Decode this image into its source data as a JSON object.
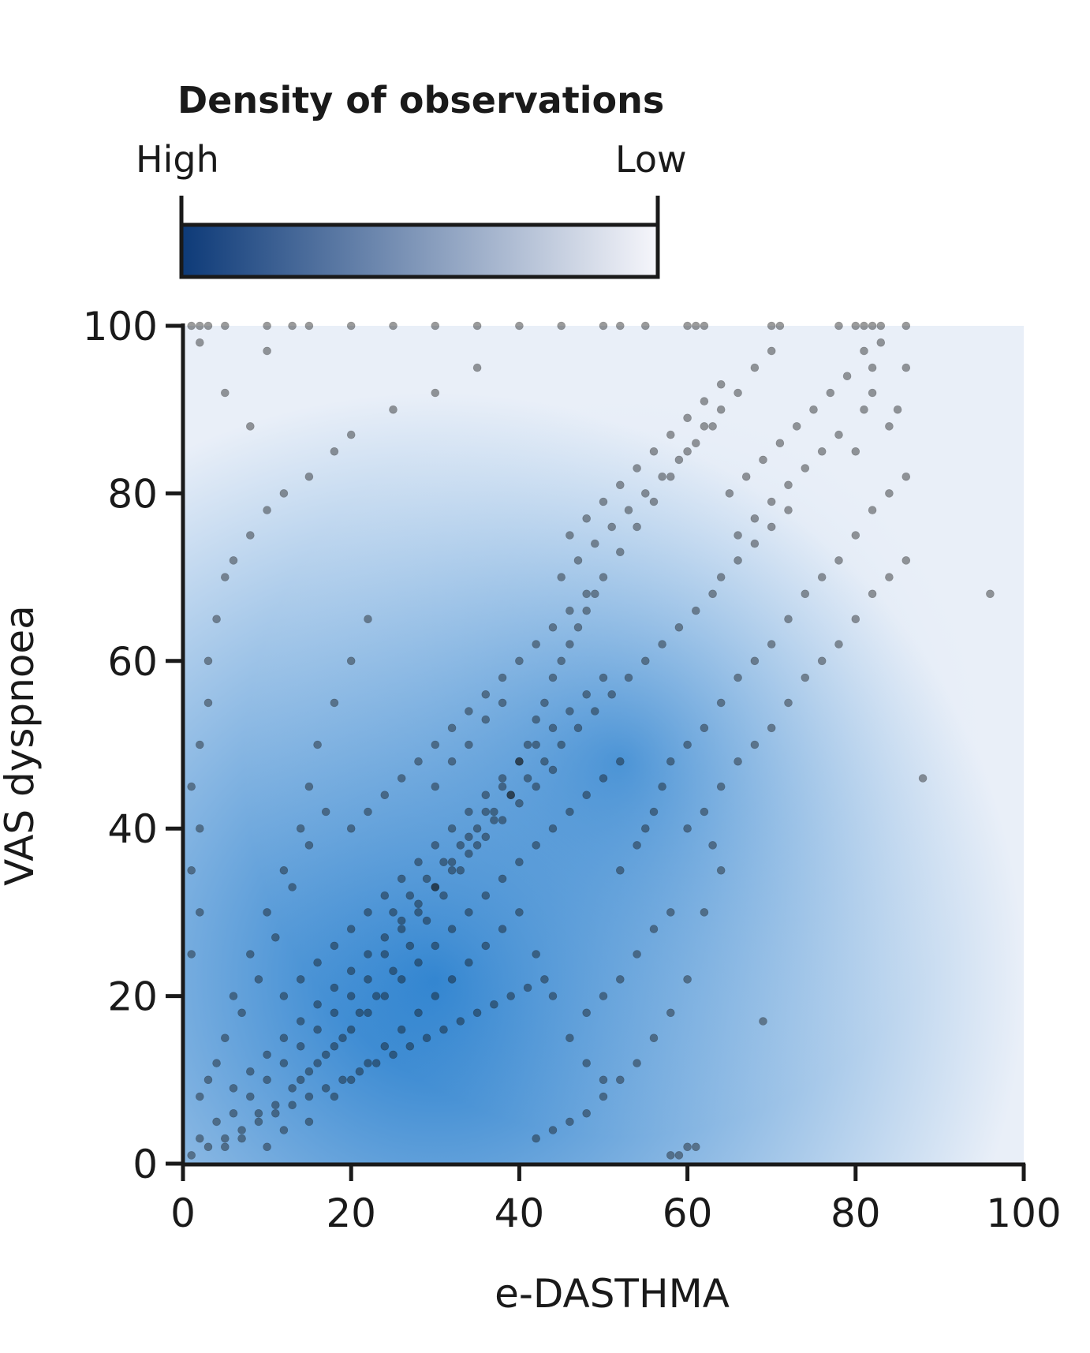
{
  "chart_data": {
    "type": "scatter",
    "xlabel": "e-DASTHMA",
    "ylabel": "VAS dyspnoea",
    "xlim": [
      0,
      100
    ],
    "ylim": [
      0,
      100
    ],
    "x_ticks": [
      "0",
      "20",
      "40",
      "60",
      "80",
      "100"
    ],
    "y_ticks": [
      "0",
      "20",
      "40",
      "60",
      "80",
      "100"
    ],
    "grid": false,
    "legend": {
      "title": "Density of observations",
      "high_label": "High",
      "low_label": "Low",
      "placement": "top",
      "color_high": "#0d3a78",
      "color_low": "#f6f6fb"
    },
    "density_background": {
      "high_color": "#1f7acc",
      "low_color": "#e9eff8"
    },
    "point_color": "#111111",
    "points": [
      [
        1,
        1
      ],
      [
        2,
        3
      ],
      [
        3,
        2
      ],
      [
        4,
        5
      ],
      [
        5,
        3
      ],
      [
        6,
        6
      ],
      [
        7,
        4
      ],
      [
        8,
        8
      ],
      [
        9,
        6
      ],
      [
        10,
        10
      ],
      [
        11,
        7
      ],
      [
        12,
        12
      ],
      [
        13,
        9
      ],
      [
        14,
        14
      ],
      [
        15,
        11
      ],
      [
        16,
        16
      ],
      [
        17,
        13
      ],
      [
        18,
        18
      ],
      [
        19,
        15
      ],
      [
        20,
        20
      ],
      [
        21,
        18
      ],
      [
        22,
        22
      ],
      [
        23,
        20
      ],
      [
        24,
        25
      ],
      [
        25,
        23
      ],
      [
        26,
        28
      ],
      [
        27,
        26
      ],
      [
        28,
        30
      ],
      [
        29,
        29
      ],
      [
        30,
        33
      ],
      [
        31,
        32
      ],
      [
        32,
        36
      ],
      [
        33,
        35
      ],
      [
        34,
        39
      ],
      [
        35,
        38
      ],
      [
        36,
        42
      ],
      [
        37,
        41
      ],
      [
        38,
        45
      ],
      [
        39,
        44
      ],
      [
        40,
        48
      ],
      [
        41,
        50
      ],
      [
        42,
        53
      ],
      [
        43,
        55
      ],
      [
        44,
        58
      ],
      [
        45,
        60
      ],
      [
        46,
        62
      ],
      [
        47,
        64
      ],
      [
        48,
        66
      ],
      [
        49,
        68
      ],
      [
        50,
        70
      ],
      [
        52,
        73
      ],
      [
        54,
        76
      ],
      [
        56,
        79
      ],
      [
        58,
        82
      ],
      [
        60,
        85
      ],
      [
        62,
        88
      ],
      [
        64,
        90
      ],
      [
        66,
        92
      ],
      [
        68,
        95
      ],
      [
        70,
        97
      ],
      [
        3,
        10
      ],
      [
        5,
        15
      ],
      [
        6,
        20
      ],
      [
        8,
        25
      ],
      [
        10,
        30
      ],
      [
        12,
        35
      ],
      [
        14,
        40
      ],
      [
        15,
        45
      ],
      [
        16,
        50
      ],
      [
        18,
        55
      ],
      [
        20,
        60
      ],
      [
        22,
        65
      ],
      [
        2,
        8
      ],
      [
        4,
        12
      ],
      [
        7,
        18
      ],
      [
        9,
        22
      ],
      [
        11,
        27
      ],
      [
        13,
        33
      ],
      [
        15,
        38
      ],
      [
        17,
        42
      ],
      [
        10,
        2
      ],
      [
        12,
        4
      ],
      [
        15,
        5
      ],
      [
        18,
        8
      ],
      [
        20,
        10
      ],
      [
        22,
        12
      ],
      [
        24,
        14
      ],
      [
        26,
        16
      ],
      [
        28,
        18
      ],
      [
        30,
        20
      ],
      [
        32,
        22
      ],
      [
        34,
        24
      ],
      [
        36,
        26
      ],
      [
        38,
        28
      ],
      [
        40,
        30
      ],
      [
        42,
        25
      ],
      [
        44,
        20
      ],
      [
        46,
        15
      ],
      [
        48,
        12
      ],
      [
        50,
        10
      ],
      [
        52,
        35
      ],
      [
        54,
        38
      ],
      [
        55,
        40
      ],
      [
        56,
        42
      ],
      [
        57,
        45
      ],
      [
        58,
        48
      ],
      [
        60,
        50
      ],
      [
        62,
        52
      ],
      [
        64,
        55
      ],
      [
        66,
        58
      ],
      [
        68,
        60
      ],
      [
        70,
        62
      ],
      [
        72,
        65
      ],
      [
        74,
        68
      ],
      [
        76,
        70
      ],
      [
        78,
        72
      ],
      [
        80,
        75
      ],
      [
        82,
        78
      ],
      [
        84,
        80
      ],
      [
        86,
        82
      ],
      [
        60,
        40
      ],
      [
        62,
        42
      ],
      [
        64,
        45
      ],
      [
        66,
        48
      ],
      [
        68,
        50
      ],
      [
        70,
        52
      ],
      [
        72,
        55
      ],
      [
        74,
        58
      ],
      [
        76,
        60
      ],
      [
        78,
        62
      ],
      [
        80,
        65
      ],
      [
        82,
        68
      ],
      [
        84,
        70
      ],
      [
        86,
        72
      ],
      [
        58,
        30
      ],
      [
        56,
        28
      ],
      [
        54,
        25
      ],
      [
        52,
        22
      ],
      [
        50,
        20
      ],
      [
        48,
        18
      ],
      [
        81,
        100
      ],
      [
        82,
        100
      ],
      [
        83,
        100
      ],
      [
        81,
        97
      ],
      [
        82,
        95
      ],
      [
        83,
        98
      ],
      [
        82,
        92
      ],
      [
        81,
        90
      ],
      [
        84,
        88
      ],
      [
        80,
        85
      ],
      [
        85,
        90
      ],
      [
        86,
        95
      ],
      [
        86,
        100
      ],
      [
        80,
        100
      ],
      [
        78,
        100
      ],
      [
        70,
        100
      ],
      [
        71,
        100
      ],
      [
        62,
        100
      ],
      [
        61,
        100
      ],
      [
        60,
        100
      ],
      [
        55,
        100
      ],
      [
        52,
        100
      ],
      [
        50,
        100
      ],
      [
        45,
        100
      ],
      [
        40,
        100
      ],
      [
        35,
        100
      ],
      [
        30,
        100
      ],
      [
        25,
        100
      ],
      [
        20,
        100
      ],
      [
        15,
        100
      ],
      [
        13,
        100
      ],
      [
        10,
        100
      ],
      [
        5,
        100
      ],
      [
        3,
        100
      ],
      [
        2,
        100
      ],
      [
        1,
        100
      ],
      [
        2,
        98
      ],
      [
        10,
        97
      ],
      [
        5,
        92
      ],
      [
        8,
        88
      ],
      [
        96,
        68
      ],
      [
        88,
        46
      ],
      [
        69,
        17
      ],
      [
        60,
        2
      ],
      [
        59,
        1
      ],
      [
        58,
        1
      ],
      [
        61,
        2
      ],
      [
        62,
        30
      ],
      [
        64,
        35
      ],
      [
        63,
        38
      ],
      [
        60,
        22
      ],
      [
        58,
        18
      ],
      [
        56,
        15
      ],
      [
        54,
        12
      ],
      [
        52,
        10
      ],
      [
        50,
        8
      ],
      [
        48,
        6
      ],
      [
        46,
        5
      ],
      [
        44,
        4
      ],
      [
        42,
        3
      ],
      [
        3,
        60
      ],
      [
        4,
        65
      ],
      [
        5,
        70
      ],
      [
        6,
        72
      ],
      [
        8,
        75
      ],
      [
        10,
        78
      ],
      [
        12,
        80
      ],
      [
        15,
        82
      ],
      [
        18,
        85
      ],
      [
        20,
        87
      ],
      [
        25,
        90
      ],
      [
        30,
        92
      ],
      [
        35,
        95
      ],
      [
        2,
        50
      ],
      [
        3,
        55
      ],
      [
        1,
        45
      ],
      [
        2,
        40
      ],
      [
        1,
        35
      ],
      [
        2,
        30
      ],
      [
        1,
        25
      ],
      [
        20,
        40
      ],
      [
        22,
        42
      ],
      [
        24,
        44
      ],
      [
        26,
        46
      ],
      [
        28,
        48
      ],
      [
        30,
        50
      ],
      [
        32,
        52
      ],
      [
        34,
        54
      ],
      [
        36,
        56
      ],
      [
        38,
        58
      ],
      [
        40,
        60
      ],
      [
        42,
        62
      ],
      [
        44,
        64
      ],
      [
        46,
        66
      ],
      [
        48,
        68
      ],
      [
        30,
        45
      ],
      [
        32,
        48
      ],
      [
        34,
        50
      ],
      [
        36,
        53
      ],
      [
        38,
        55
      ],
      [
        25,
        30
      ],
      [
        27,
        32
      ],
      [
        29,
        34
      ],
      [
        31,
        36
      ],
      [
        33,
        38
      ],
      [
        35,
        40
      ],
      [
        37,
        42
      ],
      [
        39,
        44
      ],
      [
        41,
        46
      ],
      [
        43,
        48
      ],
      [
        45,
        50
      ],
      [
        47,
        52
      ],
      [
        49,
        54
      ],
      [
        51,
        56
      ],
      [
        53,
        58
      ],
      [
        55,
        60
      ],
      [
        57,
        62
      ],
      [
        59,
        64
      ],
      [
        61,
        66
      ],
      [
        63,
        68
      ],
      [
        5,
        2
      ],
      [
        7,
        3
      ],
      [
        9,
        5
      ],
      [
        11,
        6
      ],
      [
        13,
        7
      ],
      [
        15,
        8
      ],
      [
        17,
        9
      ],
      [
        19,
        10
      ],
      [
        21,
        11
      ],
      [
        23,
        12
      ],
      [
        25,
        13
      ],
      [
        27,
        14
      ],
      [
        29,
        15
      ],
      [
        31,
        16
      ],
      [
        33,
        17
      ],
      [
        35,
        18
      ],
      [
        37,
        19
      ],
      [
        39,
        20
      ],
      [
        41,
        21
      ],
      [
        43,
        22
      ],
      [
        12,
        20
      ],
      [
        14,
        22
      ],
      [
        16,
        24
      ],
      [
        18,
        26
      ],
      [
        20,
        28
      ],
      [
        22,
        30
      ],
      [
        24,
        32
      ],
      [
        26,
        34
      ],
      [
        28,
        36
      ],
      [
        30,
        38
      ],
      [
        32,
        40
      ],
      [
        34,
        42
      ],
      [
        36,
        44
      ],
      [
        38,
        46
      ],
      [
        40,
        48
      ],
      [
        42,
        50
      ],
      [
        44,
        52
      ],
      [
        46,
        54
      ],
      [
        48,
        56
      ],
      [
        50,
        58
      ],
      [
        65,
        80
      ],
      [
        67,
        82
      ],
      [
        69,
        84
      ],
      [
        71,
        86
      ],
      [
        73,
        88
      ],
      [
        75,
        90
      ],
      [
        77,
        92
      ],
      [
        79,
        94
      ],
      [
        66,
        75
      ],
      [
        68,
        77
      ],
      [
        70,
        79
      ],
      [
        72,
        81
      ],
      [
        74,
        83
      ],
      [
        76,
        85
      ],
      [
        78,
        87
      ],
      [
        64,
        70
      ],
      [
        66,
        72
      ],
      [
        68,
        74
      ],
      [
        70,
        76
      ],
      [
        72,
        78
      ],
      [
        6,
        9
      ],
      [
        8,
        11
      ],
      [
        10,
        13
      ],
      [
        12,
        15
      ],
      [
        14,
        17
      ],
      [
        16,
        19
      ],
      [
        18,
        21
      ],
      [
        20,
        23
      ],
      [
        22,
        25
      ],
      [
        24,
        27
      ],
      [
        26,
        29
      ],
      [
        28,
        31
      ],
      [
        30,
        33
      ],
      [
        32,
        35
      ],
      [
        34,
        37
      ],
      [
        36,
        39
      ],
      [
        38,
        41
      ],
      [
        40,
        43
      ],
      [
        42,
        45
      ],
      [
        44,
        47
      ],
      [
        14,
        10
      ],
      [
        16,
        12
      ],
      [
        18,
        14
      ],
      [
        20,
        16
      ],
      [
        22,
        18
      ],
      [
        24,
        20
      ],
      [
        26,
        22
      ],
      [
        28,
        24
      ],
      [
        30,
        26
      ],
      [
        32,
        28
      ],
      [
        34,
        30
      ],
      [
        36,
        32
      ],
      [
        38,
        34
      ],
      [
        40,
        36
      ],
      [
        42,
        38
      ],
      [
        44,
        40
      ],
      [
        46,
        42
      ],
      [
        48,
        44
      ],
      [
        50,
        46
      ],
      [
        52,
        48
      ],
      [
        45,
        70
      ],
      [
        47,
        72
      ],
      [
        49,
        74
      ],
      [
        51,
        76
      ],
      [
        53,
        78
      ],
      [
        55,
        80
      ],
      [
        57,
        82
      ],
      [
        59,
        84
      ],
      [
        61,
        86
      ],
      [
        63,
        88
      ],
      [
        46,
        75
      ],
      [
        48,
        77
      ],
      [
        50,
        79
      ],
      [
        52,
        81
      ],
      [
        54,
        83
      ],
      [
        56,
        85
      ],
      [
        58,
        87
      ],
      [
        60,
        89
      ],
      [
        62,
        91
      ],
      [
        64,
        93
      ]
    ]
  }
}
